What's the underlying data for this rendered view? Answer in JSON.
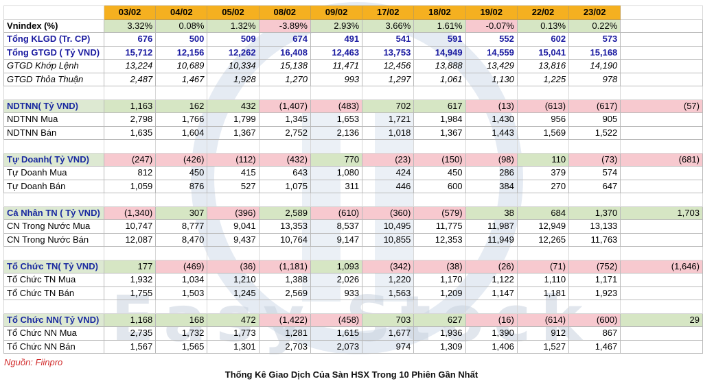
{
  "watermark": {
    "text": "Easy Stock"
  },
  "dates": [
    "03/02",
    "04/02",
    "05/02",
    "08/02",
    "09/02",
    "17/02",
    "18/02",
    "19/02",
    "22/02",
    "23/02"
  ],
  "rows": [
    {
      "label": "Vnindex (%)",
      "style": "bold",
      "values": [
        "3.32%",
        "0.08%",
        "1.32%",
        "-3.89%",
        "2.93%",
        "3.66%",
        "1.61%",
        "-0.07%",
        "0.13%",
        "0.22%"
      ],
      "last": ""
    },
    {
      "label": "Tổng KLGD (Tr. CP)",
      "style": "blue",
      "values": [
        "676",
        "500",
        "509",
        "674",
        "491",
        "541",
        "591",
        "552",
        "602",
        "573"
      ],
      "last": ""
    },
    {
      "label": "Tổng GTGD ( Tỷ VND)",
      "style": "blue",
      "values": [
        "15,712",
        "12,156",
        "12,262",
        "16,408",
        "12,463",
        "13,753",
        "14,949",
        "14,559",
        "15,041",
        "15,168"
      ],
      "last": ""
    },
    {
      "label": "GTGD Khớp Lệnh",
      "style": "ital",
      "values": [
        "13,224",
        "10,689",
        "10,334",
        "15,138",
        "11,471",
        "12,456",
        "13,888",
        "13,429",
        "13,816",
        "14,190"
      ],
      "last": ""
    },
    {
      "label": "GTGD Thỏa Thuận",
      "style": "ital",
      "values": [
        "2,487",
        "1,467",
        "1,928",
        "1,270",
        "993",
        "1,297",
        "1,061",
        "1,130",
        "1,225",
        "978"
      ],
      "last": ""
    },
    {
      "label": "",
      "style": "blank",
      "values": [
        "",
        "",
        "",
        "",
        "",
        "",
        "",
        "",
        "",
        ""
      ],
      "last": ""
    },
    {
      "label": "NDTNN( Tỷ VND)",
      "style": "sec",
      "values": [
        "1,163",
        "162",
        "432",
        "(1,407)",
        "(483)",
        "702",
        "617",
        "(13)",
        "(613)",
        "(617)"
      ],
      "last": "(57)"
    },
    {
      "label": "NDTNN Mua",
      "style": "",
      "values": [
        "2,798",
        "1,766",
        "1,799",
        "1,345",
        "1,653",
        "1,721",
        "1,984",
        "1,430",
        "956",
        "905"
      ],
      "last": ""
    },
    {
      "label": "NDTNN Bán",
      "style": "",
      "values": [
        "1,635",
        "1,604",
        "1,367",
        "2,752",
        "2,136",
        "1,018",
        "1,367",
        "1,443",
        "1,569",
        "1,522"
      ],
      "last": ""
    },
    {
      "label": "",
      "style": "blank",
      "values": [
        "",
        "",
        "",
        "",
        "",
        "",
        "",
        "",
        "",
        ""
      ],
      "last": ""
    },
    {
      "label": "Tự Doanh( Tỷ VND)",
      "style": "sec",
      "values": [
        "(247)",
        "(426)",
        "(112)",
        "(432)",
        "770",
        "(23)",
        "(150)",
        "(98)",
        "110",
        "(73)"
      ],
      "last": "(681)"
    },
    {
      "label": "Tự Doanh Mua",
      "style": "",
      "values": [
        "812",
        "450",
        "415",
        "643",
        "1,080",
        "424",
        "450",
        "286",
        "379",
        "574"
      ],
      "last": ""
    },
    {
      "label": "Tự Doanh Bán",
      "style": "",
      "values": [
        "1,059",
        "876",
        "527",
        "1,075",
        "311",
        "446",
        "600",
        "384",
        "270",
        "647"
      ],
      "last": ""
    },
    {
      "label": "",
      "style": "blank",
      "values": [
        "",
        "",
        "",
        "",
        "",
        "",
        "",
        "",
        "",
        ""
      ],
      "last": ""
    },
    {
      "label": "Cá Nhân TN ( Tỷ VND)",
      "style": "sec",
      "values": [
        "(1,340)",
        "307",
        "(396)",
        "2,589",
        "(610)",
        "(360)",
        "(579)",
        "38",
        "684",
        "1,370"
      ],
      "last": "1,703"
    },
    {
      "label": "CN Trong Nước Mua",
      "style": "",
      "values": [
        "10,747",
        "8,777",
        "9,041",
        "13,353",
        "8,537",
        "10,495",
        "11,775",
        "11,987",
        "12,949",
        "13,133"
      ],
      "last": ""
    },
    {
      "label": "CN Trong Nước Bán",
      "style": "",
      "values": [
        "12,087",
        "8,470",
        "9,437",
        "10,764",
        "9,147",
        "10,855",
        "12,353",
        "11,949",
        "12,265",
        "11,763"
      ],
      "last": ""
    },
    {
      "label": "",
      "style": "blank",
      "values": [
        "",
        "",
        "",
        "",
        "",
        "",
        "",
        "",
        "",
        ""
      ],
      "last": ""
    },
    {
      "label": "Tổ Chức TN( Tỷ VND)",
      "style": "sec",
      "values": [
        "177",
        "(469)",
        "(36)",
        "(1,181)",
        "1,093",
        "(342)",
        "(38)",
        "(26)",
        "(71)",
        "(752)"
      ],
      "last": "(1,646)"
    },
    {
      "label": "Tổ Chức TN Mua",
      "style": "",
      "values": [
        "1,932",
        "1,034",
        "1,210",
        "1,388",
        "2,026",
        "1,220",
        "1,170",
        "1,122",
        "1,110",
        "1,171"
      ],
      "last": ""
    },
    {
      "label": "Tổ Chức TN Bán",
      "style": "",
      "values": [
        "1,755",
        "1,503",
        "1,245",
        "2,569",
        "933",
        "1,563",
        "1,209",
        "1,147",
        "1,181",
        "1,923"
      ],
      "last": ""
    },
    {
      "label": "",
      "style": "blank",
      "values": [
        "",
        "",
        "",
        "",
        "",
        "",
        "",
        "",
        "",
        ""
      ],
      "last": ""
    },
    {
      "label": "Tổ Chức NN( Tỷ VND)",
      "style": "sec",
      "values": [
        "1,168",
        "168",
        "472",
        "(1,422)",
        "(458)",
        "703",
        "627",
        "(16)",
        "(614)",
        "(600)"
      ],
      "last": "29"
    },
    {
      "label": "Tổ Chức NN Mua",
      "style": "",
      "values": [
        "2,735",
        "1,732",
        "1,773",
        "1,281",
        "1,615",
        "1,677",
        "1,936",
        "1,390",
        "912",
        "867"
      ],
      "last": ""
    },
    {
      "label": "Tổ Chức NN Bán",
      "style": "",
      "values": [
        "1,567",
        "1,565",
        "1,301",
        "2,703",
        "2,073",
        "974",
        "1,309",
        "1,406",
        "1,527",
        "1,467"
      ],
      "last": ""
    }
  ],
  "source": "Nguồn: Fiinpro",
  "caption": "Thống Kê Giao Dịch Của Sàn HSX Trong 10 Phiên Gần Nhất"
}
